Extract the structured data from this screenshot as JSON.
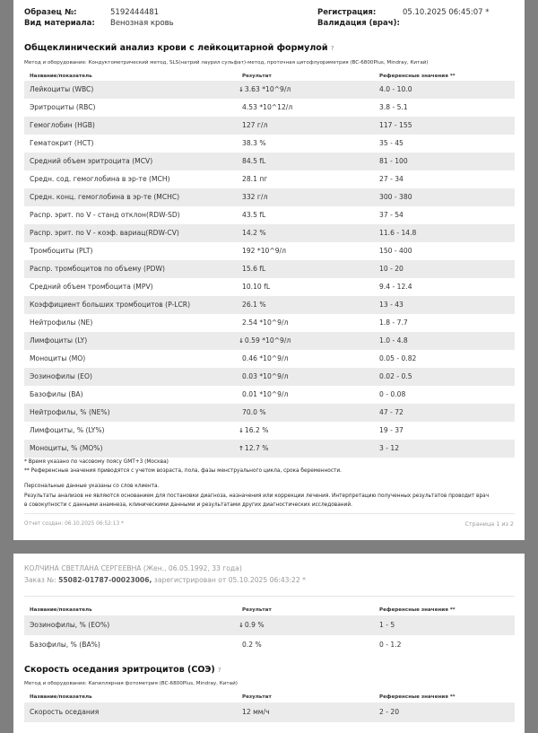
{
  "page1": {
    "sample_label": "Образец №:",
    "sample_value": "5192444481",
    "material_label": "Вид материала:",
    "material_value": "Венозная кровь",
    "registration_label": "Регистрация:",
    "registration_value": "05.10.2025 06:45:07 *",
    "validation_label": "Валидация (врач):",
    "section_title": "Общеклинический анализ крови с лейкоцитарной формулой",
    "method": "Метод и оборудование: Кондуктометрический метод, SLS(натрий лаурил сульфат)-метод, проточная цитофлуориметрия (BC-6800Plus, Mindray, Китай)",
    "headers": [
      "Название/показатель",
      "Результат",
      "Референсные значения **"
    ],
    "rows": [
      {
        "name": "Лейкоциты (WBC)",
        "flag": "↓",
        "result": "3.63 *10^9/л",
        "ref": "4.0 - 10.0"
      },
      {
        "name": "Эритроциты (RBC)",
        "flag": "",
        "result": "4.53 *10^12/л",
        "ref": "3.8 - 5.1"
      },
      {
        "name": "Гемоглобин (HGB)",
        "flag": "",
        "result": "127 г/л",
        "ref": "117 - 155"
      },
      {
        "name": "Гематокрит (HCT)",
        "flag": "",
        "result": "38.3 %",
        "ref": "35 - 45"
      },
      {
        "name": "Средний объем эритроцита (MCV)",
        "flag": "",
        "result": "84.5 fL",
        "ref": "81 - 100"
      },
      {
        "name": "Средн. сод. гемоглобина в эр-те (MCH)",
        "flag": "",
        "result": "28.1 пг",
        "ref": "27 - 34"
      },
      {
        "name": "Средн. конц. гемоглобина в эр-те (MCHC)",
        "flag": "",
        "result": "332 г/л",
        "ref": "300 - 380"
      },
      {
        "name": "Распр. эрит. по V - станд отклон(RDW-SD)",
        "flag": "",
        "result": "43.5 fL",
        "ref": "37 - 54"
      },
      {
        "name": "Распр. эрит. по V - коэф. вариац(RDW-CV)",
        "flag": "",
        "result": "14.2 %",
        "ref": "11.6 - 14.8"
      },
      {
        "name": "Тромбоциты (PLT)",
        "flag": "",
        "result": "192 *10^9/л",
        "ref": "150 - 400"
      },
      {
        "name": "Распр. тромбоцитов по объему (PDW)",
        "flag": "",
        "result": "15.6 fL",
        "ref": "10 - 20"
      },
      {
        "name": "Средний объем тромбоцита (MPV)",
        "flag": "",
        "result": "10.10 fL",
        "ref": "9.4 - 12.4"
      },
      {
        "name": "Коэффициент больших тромбоцитов (P-LCR)",
        "flag": "",
        "result": "26.1 %",
        "ref": "13 - 43"
      },
      {
        "name": "Нейтрофилы (NE)",
        "flag": "",
        "result": "2.54 *10^9/л",
        "ref": "1.8 - 7.7"
      },
      {
        "name": "Лимфоциты (LY)",
        "flag": "↓",
        "result": "0.59 *10^9/л",
        "ref": "1.0 - 4.8"
      },
      {
        "name": "Моноциты (MO)",
        "flag": "",
        "result": "0.46 *10^9/л",
        "ref": "0.05 - 0.82"
      },
      {
        "name": "Эозинофилы (EO)",
        "flag": "",
        "result": "0.03 *10^9/л",
        "ref": "0.02 - 0.5"
      },
      {
        "name": "Базофилы (BA)",
        "flag": "",
        "result": "0.01 *10^9/л",
        "ref": "0 - 0.08"
      },
      {
        "name": "Нейтрофилы, % (NE%)",
        "flag": "",
        "result": "70.0 %",
        "ref": "47 - 72"
      },
      {
        "name": "Лимфоциты, % (LY%)",
        "flag": "↓",
        "result": "16.2 %",
        "ref": "19 - 37"
      },
      {
        "name": "Моноциты, % (MO%)",
        "flag": "↑",
        "result": "12.7 %",
        "ref": "3 - 12"
      }
    ],
    "note1": "* Время указано по часовому поясу GMT+3 (Москва)",
    "note2": "** Референсные значения приводятся с учетом возраста, пола, фазы менструального цикла, срока беременности.",
    "note3": "Персональные данные указаны со слов клиента.",
    "note4a": "Результаты анализов не являются основанием для постановки диагноза, назначения или коррекции лечения. Интерпретацию полученных результатов проводит врач",
    "note4b": "в совокупности с данными анамнеза, клиническими данными и результатами других диагностических исследований.",
    "created": "Отчет создан: 06.10.2025 06:52:13 *",
    "page_num": "Страница 1 из 2"
  },
  "page2": {
    "patient": "КОЛЧИНА СВЕТЛАНА СЕРГЕЕВНА (Жен., 06.05.1992, 33 года)",
    "order_prefix": "Заказ №: ",
    "order_number": "55082-01787-00023006,",
    "order_suffix": " зарегистрирован от 05.10.2025 06:43:22 *",
    "headers": [
      "Название/показатель",
      "Результат",
      "Референсные значения **"
    ],
    "rows": [
      {
        "name": "Эозинофилы, % (EO%)",
        "flag": "↓",
        "result": "0.9 %",
        "ref": "1 - 5"
      },
      {
        "name": "Базофилы, % (BA%)",
        "flag": "",
        "result": "0.2 %",
        "ref": "0 - 1.2"
      }
    ],
    "esr_title": "Скорость оседания эритроцитов (СОЭ)",
    "esr_method": "Метод и оборудование: Капиллярная фотометрия (BC-6800Plus, Mindray, Китай)",
    "esr_rows": [
      {
        "name": "Скорость оседания",
        "flag": "",
        "result": "12 мм/ч",
        "ref": "2 - 20"
      }
    ]
  },
  "icons": {
    "help": "?",
    "down": "↓",
    "up": "↑"
  }
}
